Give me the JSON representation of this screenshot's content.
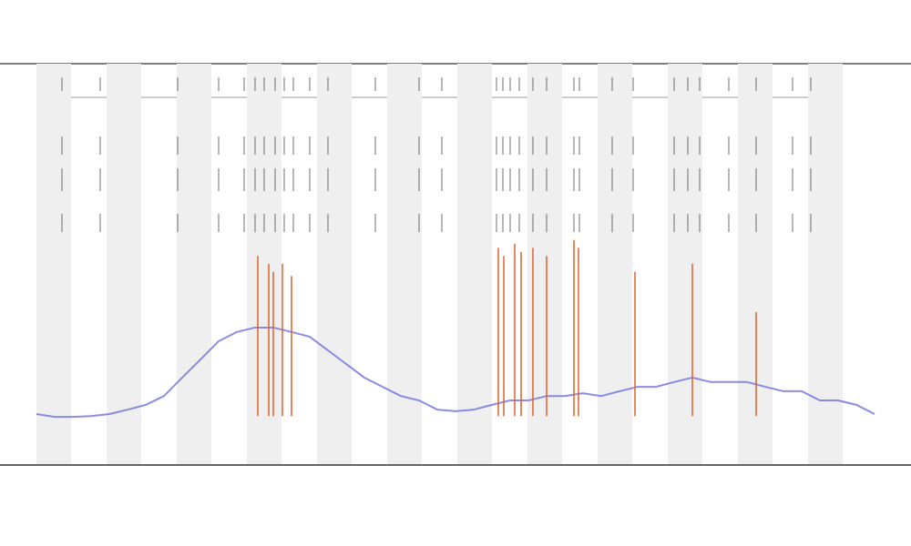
{
  "chart_data": {
    "type": "line",
    "xlim": [
      0,
      920
    ],
    "ylim": [
      0,
      100
    ],
    "x": [
      0,
      20,
      40,
      60,
      80,
      100,
      120,
      140,
      160,
      180,
      200,
      220,
      240,
      260,
      280,
      300,
      320,
      340,
      360,
      380,
      400,
      420,
      440,
      460,
      480,
      500,
      520,
      540,
      560,
      580,
      600,
      620,
      640,
      660,
      680,
      700,
      720,
      740,
      760,
      780,
      800,
      820,
      840,
      860,
      880,
      900,
      920
    ],
    "series": [
      {
        "color": "#6f6fe0",
        "values": [
          12.5,
          11.8,
          11.8,
          12,
          12.5,
          13.6,
          14.8,
          17,
          21.6,
          26.1,
          30.7,
          33,
          34.1,
          34.1,
          33,
          31.8,
          28.4,
          25,
          21.6,
          19.3,
          17,
          15.9,
          13.6,
          13.2,
          13.6,
          14.8,
          15.9,
          15.9,
          17,
          17,
          17.7,
          17,
          18.2,
          19.3,
          19.3,
          20.5,
          21.6,
          20.5,
          20.5,
          20.5,
          19.3,
          18.2,
          18.2,
          15.9,
          15.9,
          14.8,
          12.5
        ]
      }
    ],
    "spikes": {
      "color": "#e0622a",
      "base": 12,
      "x": [
        243,
        255,
        260,
        270,
        280,
        507,
        513,
        525,
        532,
        545,
        560,
        590,
        595,
        657,
        720,
        790
      ],
      "values": [
        52,
        50,
        48,
        50,
        47,
        54,
        52,
        55,
        53,
        54,
        52,
        56,
        54,
        48,
        50,
        38
      ]
    },
    "track_marks_x": [
      28,
      70,
      155,
      200,
      228,
      240,
      250,
      262,
      272,
      282,
      300,
      320,
      372,
      420,
      445,
      505,
      512,
      520,
      530,
      545,
      560,
      590,
      596,
      632,
      655,
      700,
      715,
      728,
      760,
      790,
      830,
      850
    ]
  }
}
